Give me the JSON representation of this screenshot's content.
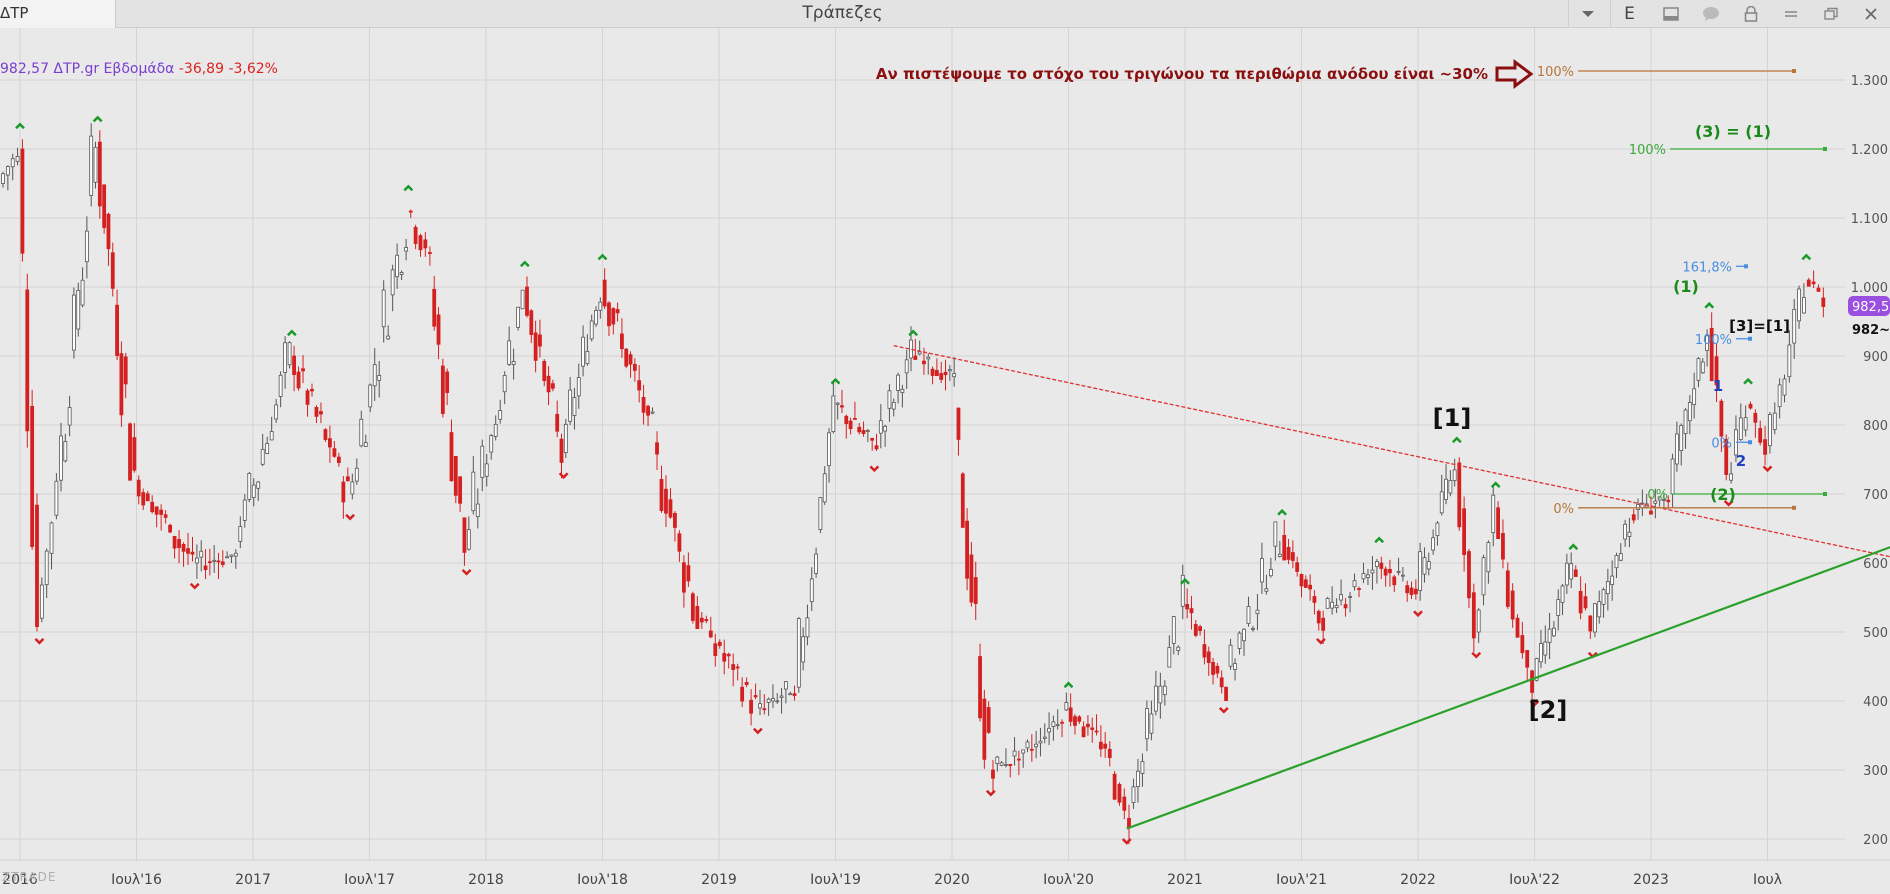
{
  "window": {
    "symbol": "ΔΤΡ",
    "title": "Τράπεζες",
    "edit_label": "E"
  },
  "price_header": {
    "info": "982,57 ΔΤΡ.gr Εβδομάδα",
    "change": "-36,89 -3,62%"
  },
  "watermark": "ZTRADE",
  "annotations": {
    "note": "Αν πιστέψουμε το στόχο του τριγώνου τα περιθώρια ανόδου είναι ~30%",
    "wave1_major": "[1]",
    "wave2_major": "[2]",
    "wave3_eq_1": "[3]=[1]",
    "wave_3_eq_1_minor": "(3) = (1)",
    "wave_1_minor": "(1)",
    "wave_2_minor": "(2)",
    "sub_1": "1",
    "sub_2": "2",
    "last_price_label": "982,57",
    "last_price_cut": "982~",
    "fib_orange_100": "100%",
    "fib_orange_0": "0%",
    "fib_green_100": "100%",
    "fib_green_0": "0%",
    "fib_blue_1618": "161,8%",
    "fib_blue_100": "100%",
    "fib_blue_0": "0%"
  },
  "colors": {
    "up_candle": "#555555",
    "down_candle": "#d42020",
    "fractal_up": "#1a9a2a",
    "fractal_down": "#d42020",
    "resistance_line": "#e03030",
    "support_line": "#2aa12a",
    "fib_orange": "#b8763a",
    "fib_green": "#3aaa3a",
    "fib_blue": "#4a8ee0",
    "price_badge": "#9b4fe0",
    "note_text": "#8a1010"
  },
  "chart_data": {
    "type": "candlestick",
    "timeframe": "weekly",
    "x_axis_labels": [
      "2016",
      "Ιουλ'16",
      "2017",
      "Ιουλ'17",
      "2018",
      "Ιουλ'18",
      "2019",
      "Ιουλ'19",
      "2020",
      "Ιουλ'20",
      "2021",
      "Ιουλ'21",
      "2022",
      "Ιουλ'22",
      "2023",
      "Ιουλ"
    ],
    "y_axis_labels": [
      "1.300",
      "1.200",
      "1.100",
      "1.000",
      "900",
      "800",
      "700",
      "600",
      "500",
      "400",
      "300",
      "200"
    ],
    "ylim": [
      190,
      1330
    ],
    "last_price": 982.57,
    "swing_points": [
      {
        "date": "2015-12",
        "value": 1150
      },
      {
        "date": "2016-01",
        "value": 1200
      },
      {
        "date": "2016-02",
        "value": 520
      },
      {
        "date": "2016-03",
        "value": 720
      },
      {
        "date": "2016-05",
        "value": 1210
      },
      {
        "date": "2016-07",
        "value": 720
      },
      {
        "date": "2016-10",
        "value": 600
      },
      {
        "date": "2016-12",
        "value": 610
      },
      {
        "date": "2017-03",
        "value": 900
      },
      {
        "date": "2017-06",
        "value": 700
      },
      {
        "date": "2017-09",
        "value": 1110
      },
      {
        "date": "2017-10",
        "value": 1050
      },
      {
        "date": "2017-12",
        "value": 620
      },
      {
        "date": "2018-03",
        "value": 1000
      },
      {
        "date": "2018-05",
        "value": 760
      },
      {
        "date": "2018-07",
        "value": 1010
      },
      {
        "date": "2018-09",
        "value": 840
      },
      {
        "date": "2018-12",
        "value": 520
      },
      {
        "date": "2019-03",
        "value": 390
      },
      {
        "date": "2019-05",
        "value": 420
      },
      {
        "date": "2019-07",
        "value": 830
      },
      {
        "date": "2019-09",
        "value": 770
      },
      {
        "date": "2019-11",
        "value": 900
      },
      {
        "date": "2020-01",
        "value": 870
      },
      {
        "date": "2020-03",
        "value": 300
      },
      {
        "date": "2020-05",
        "value": 330
      },
      {
        "date": "2020-07",
        "value": 390
      },
      {
        "date": "2020-09",
        "value": 330
      },
      {
        "date": "2020-10",
        "value": 230
      },
      {
        "date": "2021-01",
        "value": 540
      },
      {
        "date": "2021-03",
        "value": 420
      },
      {
        "date": "2021-06",
        "value": 640
      },
      {
        "date": "2021-08",
        "value": 520
      },
      {
        "date": "2021-11",
        "value": 600
      },
      {
        "date": "2022-01",
        "value": 560
      },
      {
        "date": "2022-03",
        "value": 745
      },
      {
        "date": "2022-04",
        "value": 500
      },
      {
        "date": "2022-05",
        "value": 680
      },
      {
        "date": "2022-06",
        "value": 520
      },
      {
        "date": "2022-07",
        "value": 430
      },
      {
        "date": "2022-09",
        "value": 590
      },
      {
        "date": "2022-10",
        "value": 500
      },
      {
        "date": "2022-12",
        "value": 670
      },
      {
        "date": "2023-02",
        "value": 700
      },
      {
        "date": "2023-04",
        "value": 940
      },
      {
        "date": "2023-05",
        "value": 720
      },
      {
        "date": "2023-06",
        "value": 830
      },
      {
        "date": "2023-07",
        "value": 770
      },
      {
        "date": "2023-08",
        "value": 870
      },
      {
        "date": "2023-09",
        "value": 1010
      },
      {
        "date": "2023-10",
        "value": 982.57
      }
    ],
    "trendlines": [
      {
        "name": "resistance",
        "from": {
          "date": "2019-10",
          "value": 915
        },
        "to": {
          "date": "2024-02",
          "value": 605
        }
      },
      {
        "name": "support",
        "from": {
          "date": "2020-10",
          "value": 215
        },
        "to": {
          "date": "2024-02",
          "value": 630
        }
      }
    ],
    "fib_levels": [
      {
        "group": "orange",
        "label": "100%",
        "value": 1313
      },
      {
        "group": "orange",
        "label": "0%",
        "value": 680
      },
      {
        "group": "green",
        "label": "100%",
        "value": 1200
      },
      {
        "group": "green",
        "label": "0%",
        "value": 700
      },
      {
        "group": "blue",
        "label": "161,8%",
        "value": 1030
      },
      {
        "group": "blue",
        "label": "100%",
        "value": 925
      },
      {
        "group": "blue",
        "label": "0%",
        "value": 775
      }
    ]
  }
}
